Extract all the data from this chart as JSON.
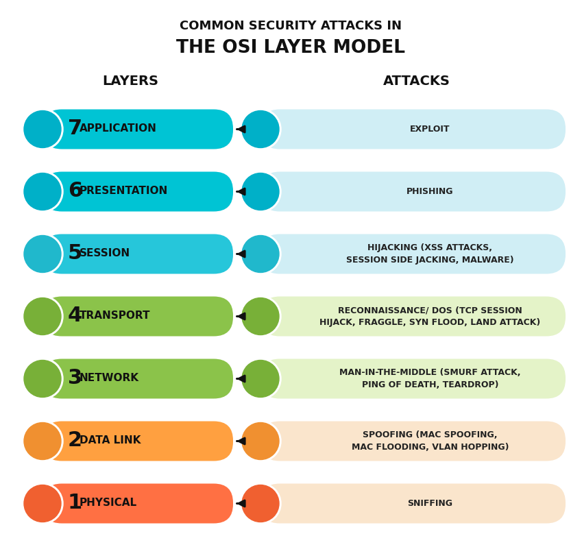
{
  "title_line1": "COMMON SECURITY ATTACKS IN",
  "title_line2": "THE OSI LAYER MODEL",
  "col_header_left": "LAYERS",
  "col_header_right": "ATTACKS",
  "layers": [
    {
      "num": "7",
      "name": "APPLICATION",
      "layer_color": "#00C4D4",
      "icon_color": "#00B0C8",
      "attack_text": "EXPLOIT",
      "attack_bg": "#D0EEF5",
      "attack_icon_color": "#00B0C8",
      "multiline": false
    },
    {
      "num": "6",
      "name": "PRESENTATION",
      "layer_color": "#00C4D4",
      "icon_color": "#00B0C8",
      "attack_text": "PHISHING",
      "attack_bg": "#D0EEF5",
      "attack_icon_color": "#00B0C8",
      "multiline": false
    },
    {
      "num": "5",
      "name": "SESSION",
      "layer_color": "#26C6DA",
      "icon_color": "#20B8CC",
      "attack_text": "HIJACKING (XSS ATTACKS,\nSESSION SIDE JACKING, MALWARE)",
      "attack_bg": "#D0EEF5",
      "attack_icon_color": "#20B8CC",
      "multiline": true
    },
    {
      "num": "4",
      "name": "TRANSPORT",
      "layer_color": "#8BC34A",
      "icon_color": "#78B038",
      "attack_text": "RECONNAISSANCE/ DOS (TCP SESSION\nHIJACK, FRAGGLE, SYN FLOOD, LAND ATTACK)",
      "attack_bg": "#E4F3C8",
      "attack_icon_color": "#78B038",
      "multiline": true
    },
    {
      "num": "3",
      "name": "NETWORK",
      "layer_color": "#8BC34A",
      "icon_color": "#78B038",
      "attack_text": "MAN-IN-THE-MIDDLE (SMURF ATTACK,\nPING OF DEATH, TEARDROP)",
      "attack_bg": "#E4F3C8",
      "attack_icon_color": "#78B038",
      "multiline": true
    },
    {
      "num": "2",
      "name": "DATA LINK",
      "layer_color": "#FFA040",
      "icon_color": "#F09030",
      "attack_text": "SPOOFING (MAC SPOOFING,\nMAC FLOODING, VLAN HOPPING)",
      "attack_bg": "#FAE5CC",
      "attack_icon_color": "#F09030",
      "multiline": true
    },
    {
      "num": "1",
      "name": "PHYSICAL",
      "layer_color": "#FF7043",
      "icon_color": "#F06030",
      "attack_text": "SNIFFING",
      "attack_bg": "#FAE5CC",
      "attack_icon_color": "#F06030",
      "multiline": false
    }
  ],
  "bg_color": "#FFFFFF",
  "text_color": "#1a1a1a",
  "arrow_color": "#111111",
  "fig_width": 8.49,
  "fig_height": 7.98,
  "dpi": 100,
  "title1_fontsize": 13,
  "title2_fontsize": 19,
  "header_fontsize": 14,
  "num_fontsize": 22,
  "name_fontsize": 11,
  "attack_fontsize": 9
}
